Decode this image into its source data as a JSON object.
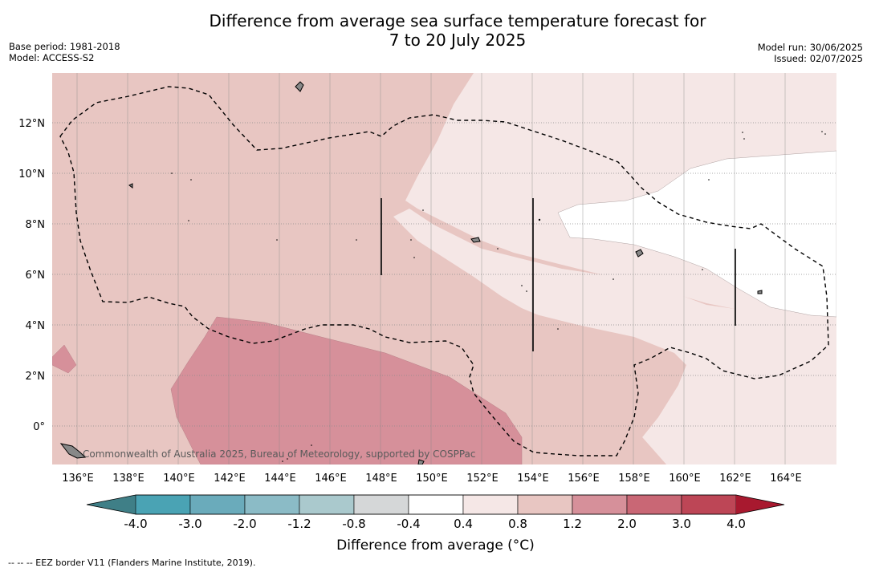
{
  "title": {
    "line1": "Difference from average sea surface temperature forecast for",
    "line2": "7 to 20 July 2025"
  },
  "meta_left": {
    "base_period": "Base period: 1981-2018",
    "model": "Model: ACCESS-S2"
  },
  "meta_right": {
    "model_run": "Model run: 30/06/2025",
    "issued": "Issued: 02/07/2025"
  },
  "map": {
    "lon_labels": [
      "136°E",
      "138°E",
      "140°E",
      "142°E",
      "144°E",
      "146°E",
      "148°E",
      "150°E",
      "152°E",
      "154°E",
      "156°E",
      "158°E",
      "160°E",
      "162°E",
      "164°E"
    ],
    "lat_labels": [
      "12°N",
      "10°N",
      "8°N",
      "6°N",
      "4°N",
      "2°N",
      "0°"
    ],
    "watermark": "Commonwealth of Australia 2025, Bureau of Meteorology, supported by COSPPac",
    "colors": {
      "anom_0p4_0p8": "#f5e7e6",
      "anom_0p8_1p2": "#e8c6c2",
      "anom_1p2_2p0": "#d6909a",
      "grid": "#8a8a8a"
    }
  },
  "colorbar": {
    "ticks": [
      "-4.0",
      "-3.0",
      "-2.0",
      "-1.2",
      "-0.8",
      "-0.4",
      "0.4",
      "0.8",
      "1.2",
      "2.0",
      "3.0",
      "4.0"
    ],
    "colors": [
      "#4aa3b4",
      "#6aabbb",
      "#8bbbc6",
      "#aac9cd",
      "#d5d7d8",
      "#ffffff",
      "#f5e7e6",
      "#e8c6c2",
      "#d6909a",
      "#c96775",
      "#bd4656"
    ],
    "extend_low_color": "#3f7f87",
    "extend_high_color": "#a8192f",
    "label": "Difference from average (°C)"
  },
  "footer": {
    "eez_note": "--  --  -- EEZ border V11 (Flanders Marine Institute, 2019)."
  }
}
